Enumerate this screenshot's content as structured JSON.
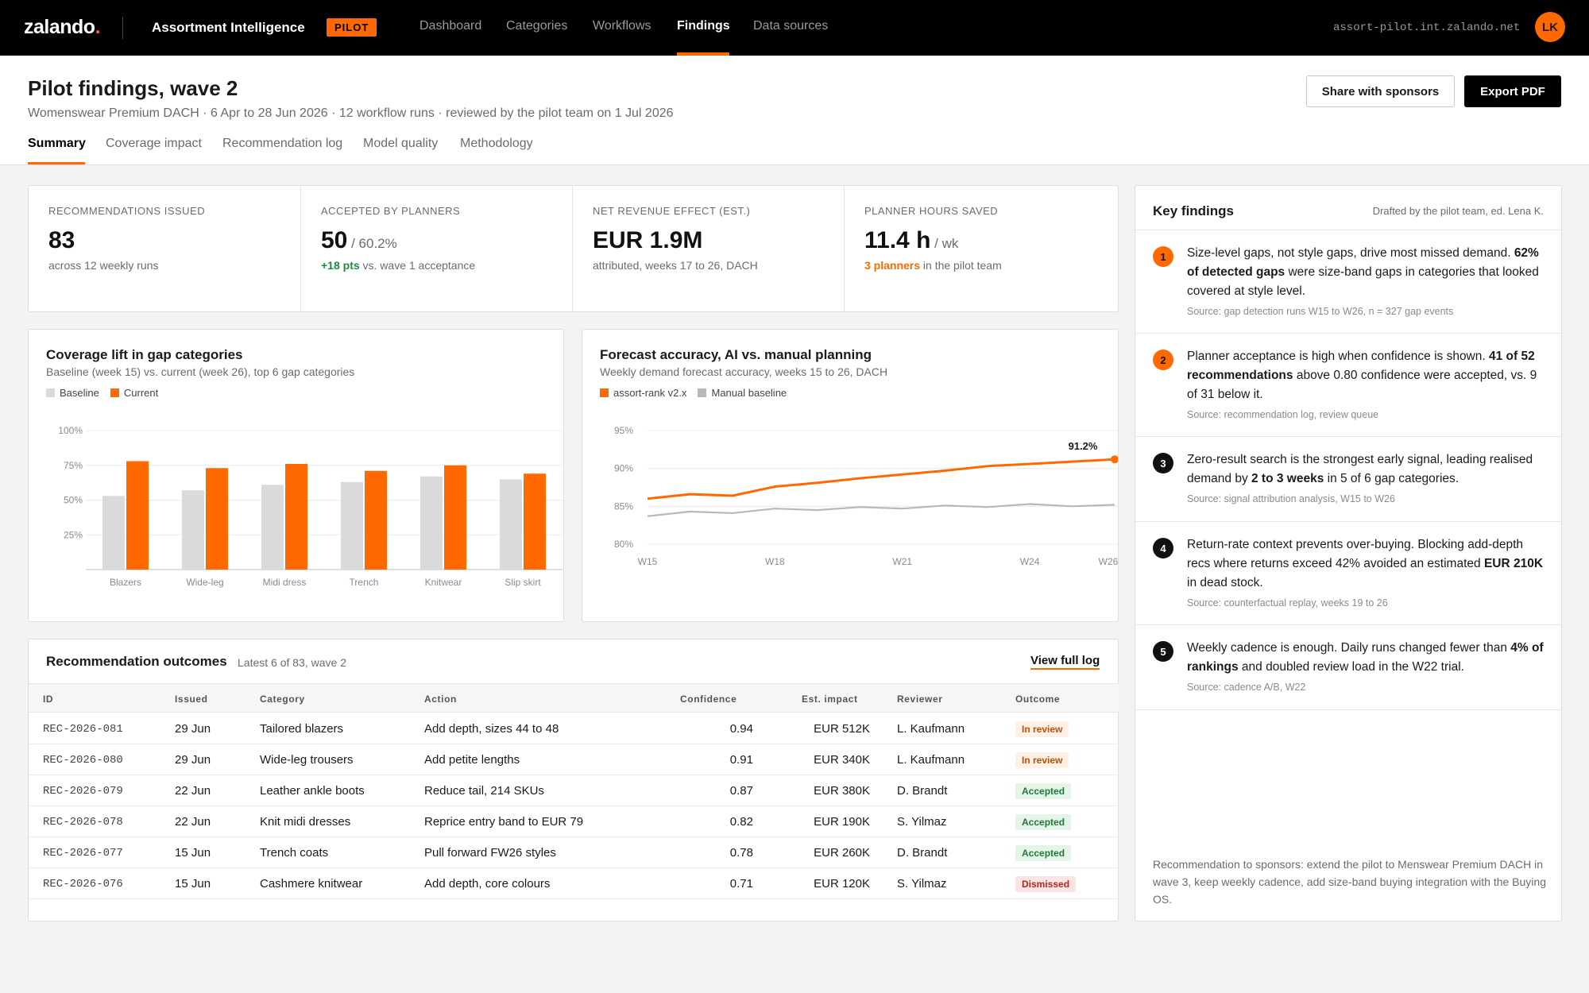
{
  "topbar": {
    "logo": "zalando",
    "logo_dot": ".",
    "app_name": "Assortment Intelligence",
    "badge": "PILOT",
    "nav": [
      "Dashboard",
      "Categories",
      "Workflows",
      "Findings",
      "Data sources"
    ],
    "active_nav": "Findings",
    "host": "assort-pilot.int.zalando.net",
    "avatar_initials": "LK"
  },
  "header": {
    "title": "Pilot findings, wave 2",
    "subtitle": "Womenswear Premium DACH · 6 Apr to 28 Jun 2026 · 12 workflow runs · reviewed by the pilot team on 1 Jul 2026",
    "share_label": "Share with sponsors",
    "export_label": "Export PDF",
    "tabs": [
      "Summary",
      "Coverage impact",
      "Recommendation log",
      "Model quality",
      "Methodology"
    ],
    "active_tab": "Summary"
  },
  "kpis": [
    {
      "label": "Recommendations issued",
      "value": "83",
      "unit": "",
      "note_pre": "",
      "note_strong": "",
      "note_rest": "across 12 weekly runs"
    },
    {
      "label": "Accepted by planners",
      "value": "50",
      "unit": " / 60.2%",
      "note_pre": "",
      "note_strong": "+18 pts",
      "note_rest": " vs. wave 1 acceptance"
    },
    {
      "label": "Net revenue effect (est.)",
      "value": "EUR 1.9M",
      "unit": "",
      "note_pre": "",
      "note_strong": "",
      "note_rest": "attributed, weeks 17 to 26, DACH"
    },
    {
      "label": "Planner hours saved",
      "value": "11.4 h",
      "unit": " / wk",
      "note_pre": "",
      "note_strong": "3 planners",
      "note_rest": " in the pilot team"
    }
  ],
  "coverage_chart": {
    "title": "Coverage lift in gap categories",
    "subtitle": "Baseline (week 15) vs. current (week 26), top 6 gap categories",
    "legend": [
      "Baseline",
      "Current"
    ]
  },
  "forecast_chart": {
    "title": "Forecast accuracy, AI vs. manual planning",
    "subtitle": "Weekly demand forecast accuracy, weeks 15 to 26, DACH",
    "legend": [
      "assort-rank v2.x",
      "Manual baseline"
    ]
  },
  "chart_data": [
    {
      "type": "bar",
      "title": "Coverage lift in gap categories",
      "categories": [
        "Blazers",
        "Wide-leg",
        "Midi dress",
        "Trench",
        "Knitwear",
        "Slip skirt"
      ],
      "series": [
        {
          "name": "Baseline",
          "values": [
            53,
            57,
            61,
            63,
            67,
            65
          ],
          "color": "#dadada"
        },
        {
          "name": "Current",
          "values": [
            78,
            73,
            76,
            71,
            75,
            69
          ],
          "color": "#ff6900"
        }
      ],
      "y_ticks": [
        "25%",
        "50%",
        "75%",
        "100%"
      ],
      "ylim": [
        0,
        100
      ],
      "grid": true
    },
    {
      "type": "line",
      "title": "Forecast accuracy, AI vs. manual planning",
      "x": [
        "W15",
        "W16",
        "W17",
        "W18",
        "W19",
        "W20",
        "W21",
        "W22",
        "W23",
        "W24",
        "W25",
        "W26"
      ],
      "x_ticks": [
        "W15",
        "W18",
        "W21",
        "W24",
        "W26"
      ],
      "series": [
        {
          "name": "assort-rank v2.x",
          "values": [
            86.0,
            86.6,
            86.4,
            87.6,
            88.1,
            88.7,
            89.2,
            89.7,
            90.3,
            90.6,
            90.9,
            91.2
          ],
          "color": "#ff6900"
        },
        {
          "name": "Manual baseline",
          "values": [
            83.7,
            84.3,
            84.1,
            84.7,
            84.5,
            84.9,
            84.7,
            85.1,
            84.9,
            85.3,
            85.0,
            85.2
          ],
          "color": "#b8b8b8"
        }
      ],
      "end_label": "91.2%",
      "y_ticks": [
        "80%",
        "85%",
        "90%",
        "95%"
      ],
      "ylim": [
        80,
        95
      ],
      "grid": true
    }
  ],
  "outcomes": {
    "title": "Recommendation outcomes",
    "subtitle": "Latest 6 of 83, wave 2",
    "link": "View full log",
    "columns": [
      "ID",
      "Issued",
      "Category",
      "Action",
      "Confidence",
      "Est. impact",
      "Reviewer",
      "Outcome"
    ],
    "rows": [
      {
        "id": "REC-2026-081",
        "issued": "29 Jun",
        "category": "Tailored blazers",
        "action": "Add depth, sizes 44 to 48",
        "confidence": "0.94",
        "impact": "EUR 512K",
        "reviewer": "L. Kaufmann",
        "outcome": "In review",
        "status": "review"
      },
      {
        "id": "REC-2026-080",
        "issued": "29 Jun",
        "category": "Wide-leg trousers",
        "action": "Add petite lengths",
        "confidence": "0.91",
        "impact": "EUR 340K",
        "reviewer": "L. Kaufmann",
        "outcome": "In review",
        "status": "review"
      },
      {
        "id": "REC-2026-079",
        "issued": "22 Jun",
        "category": "Leather ankle boots",
        "action": "Reduce tail, 214 SKUs",
        "confidence": "0.87",
        "impact": "EUR 380K",
        "reviewer": "D. Brandt",
        "outcome": "Accepted",
        "status": "accepted"
      },
      {
        "id": "REC-2026-078",
        "issued": "22 Jun",
        "category": "Knit midi dresses",
        "action": "Reprice entry band to EUR 79",
        "confidence": "0.82",
        "impact": "EUR 190K",
        "reviewer": "S. Yilmaz",
        "outcome": "Accepted",
        "status": "accepted"
      },
      {
        "id": "REC-2026-077",
        "issued": "15 Jun",
        "category": "Trench coats",
        "action": "Pull forward FW26 styles",
        "confidence": "0.78",
        "impact": "EUR 260K",
        "reviewer": "D. Brandt",
        "outcome": "Accepted",
        "status": "accepted"
      },
      {
        "id": "REC-2026-076",
        "issued": "15 Jun",
        "category": "Cashmere knitwear",
        "action": "Add depth, core colours",
        "confidence": "0.71",
        "impact": "EUR 120K",
        "reviewer": "S. Yilmaz",
        "outcome": "Dismissed",
        "status": "dismissed"
      }
    ]
  },
  "findings": {
    "title": "Key findings",
    "byline": "Drafted by the pilot team, ed. Lena K.",
    "items": [
      {
        "num": "1",
        "style": "orange",
        "parts": [
          [
            "Size-level gaps, not style gaps, drive most missed demand. ",
            false
          ],
          [
            "62% of detected gaps",
            true
          ],
          [
            " were size-band gaps in categories that looked covered at style level.",
            false
          ]
        ],
        "source": "Source: gap detection runs W15 to W26, n = 327 gap events"
      },
      {
        "num": "2",
        "style": "orange",
        "parts": [
          [
            "Planner acceptance is high when confidence is shown. ",
            false
          ],
          [
            "41 of 52 recommendations",
            true
          ],
          [
            " above 0.80 confidence were accepted, vs. 9 of 31 below it.",
            false
          ]
        ],
        "source": "Source: recommendation log, review queue"
      },
      {
        "num": "3",
        "style": "black",
        "parts": [
          [
            "Zero-result search is the strongest early signal, leading realised demand by ",
            false
          ],
          [
            "2 to 3 weeks",
            true
          ],
          [
            " in 5 of 6 gap categories.",
            false
          ]
        ],
        "source": "Source: signal attribution analysis, W15 to W26"
      },
      {
        "num": "4",
        "style": "black",
        "parts": [
          [
            "Return-rate context prevents over-buying. Blocking add-depth recs where returns exceed 42% avoided an estimated ",
            false
          ],
          [
            "EUR 210K",
            true
          ],
          [
            " in dead stock.",
            false
          ]
        ],
        "source": "Source: counterfactual replay, weeks 19 to 26"
      },
      {
        "num": "5",
        "style": "black",
        "parts": [
          [
            "Weekly cadence is enough. Daily runs changed fewer than ",
            false
          ],
          [
            "4% of rankings",
            true
          ],
          [
            " and doubled review load in the W22 trial.",
            false
          ]
        ],
        "source": "Source: cadence A/B, W22"
      }
    ],
    "footer": "Recommendation to sponsors: extend the pilot to Menswear Premium DACH in wave 3, keep weekly cadence, add size-band buying integration with the Buying OS."
  }
}
